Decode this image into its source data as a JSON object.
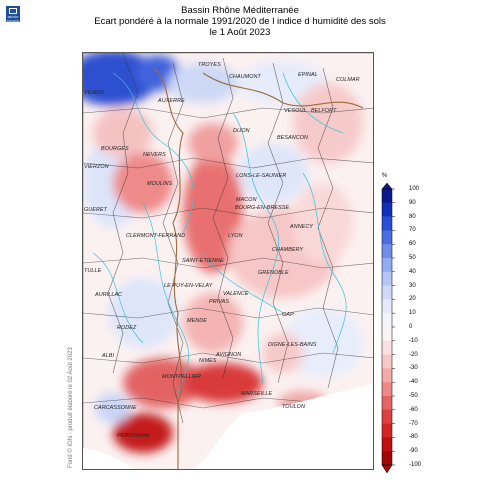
{
  "header": {
    "logo_text": "MÉTÉO FRANCE",
    "title_line1": "Bassin Rhône Méditerranée",
    "title_line2": "Ecart pondéré à la normale 1991/2020 de l indice d humidité des sols",
    "title_line3": "le 1 Août 2023"
  },
  "footer": {
    "vertical_text": "Fond © IGN - produit élaboré le 02 Août 2023"
  },
  "legend": {
    "unit": "%",
    "ticks": [
      "100",
      "90",
      "80",
      "70",
      "60",
      "50",
      "40",
      "30",
      "20",
      "10",
      "0",
      "-10",
      "-20",
      "-30",
      "-40",
      "-50",
      "-60",
      "-70",
      "-80",
      "-90",
      "-100"
    ],
    "colors": [
      "#0a1a8c",
      "#1030b8",
      "#2a4fd6",
      "#4a6ee0",
      "#6f8ee8",
      "#93acef",
      "#b4c6f4",
      "#cfdaf8",
      "#e4ebfb",
      "#f4f6fd",
      "#fbf3f3",
      "#fbe0e0",
      "#f8c7c7",
      "#f4a9a9",
      "#ee8888",
      "#e76464",
      "#de4040",
      "#d22424",
      "#bf1010",
      "#a00606"
    ]
  },
  "cities": [
    {
      "name": "TROYES"
    },
    {
      "name": "CHAUMONT"
    },
    {
      "name": "EPINAL"
    },
    {
      "name": "COLMAR"
    },
    {
      "name": "VILANS"
    },
    {
      "name": "AUXERRE"
    },
    {
      "name": "VESOUL"
    },
    {
      "name": "BELFORT"
    },
    {
      "name": "DIJON"
    },
    {
      "name": "BESANCON"
    },
    {
      "name": "BOURGES"
    },
    {
      "name": "NEVERS"
    },
    {
      "name": "VIERZON"
    },
    {
      "name": "MOULINS"
    },
    {
      "name": "LONS-LE-SAUNIER"
    },
    {
      "name": "GUERET"
    },
    {
      "name": "MACON"
    },
    {
      "name": "BOURG-EN-BRESSE"
    },
    {
      "name": "ANNECY"
    },
    {
      "name": "CLERMONT-FERRAND"
    },
    {
      "name": "LYON"
    },
    {
      "name": "CHAMBERY"
    },
    {
      "name": "SAINT-ETIENNE"
    },
    {
      "name": "GRENOBLE"
    },
    {
      "name": "TULLE"
    },
    {
      "name": "LE PUY-EN-VELAY"
    },
    {
      "name": "VALENCE"
    },
    {
      "name": "AURILLAC"
    },
    {
      "name": "PRIVAS"
    },
    {
      "name": "GAP"
    },
    {
      "name": "RODEZ"
    },
    {
      "name": "MENDE"
    },
    {
      "name": "DIGNE-LES-BAINS"
    },
    {
      "name": "ALBI"
    },
    {
      "name": "NIMES"
    },
    {
      "name": "AVIGNON"
    },
    {
      "name": "MONTPELLIER"
    },
    {
      "name": "CARCASSONNE"
    },
    {
      "name": "MARSEILLE"
    },
    {
      "name": "TOULON"
    },
    {
      "name": "PERPIGNAN"
    }
  ]
}
